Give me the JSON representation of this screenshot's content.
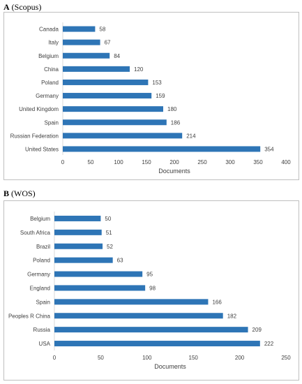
{
  "panels": [
    {
      "letter": "A",
      "source": "(Scopus)"
    },
    {
      "letter": "B",
      "source": "(WOS)"
    }
  ],
  "chart_data": [
    {
      "type": "bar",
      "orientation": "horizontal",
      "categories": [
        "Canada",
        "Italy",
        "Belgium",
        "China",
        "Poland",
        "Germany",
        "United Kingdom",
        "Spain",
        "Russian Federation",
        "United States"
      ],
      "values": [
        58,
        67,
        84,
        120,
        153,
        159,
        180,
        186,
        214,
        354
      ],
      "xlabel": "Documents",
      "ylabel": "",
      "xlim": [
        0,
        400
      ],
      "xticks": [
        "0",
        "50",
        "100",
        "150",
        "200",
        "250",
        "300",
        "350",
        "400"
      ],
      "value_labels": [
        "58",
        "67",
        "84",
        "120",
        "153",
        "159",
        "180",
        "186",
        "214",
        "354"
      ],
      "color": "#2e75b6",
      "grid": false,
      "legend": false
    },
    {
      "type": "bar",
      "orientation": "horizontal",
      "categories": [
        "Belgium",
        "South Africa",
        "Brazil",
        "Poland",
        "Germany",
        "England",
        "Spain",
        "Peoples R China",
        "Russia",
        "USA"
      ],
      "values": [
        50,
        51,
        52,
        63,
        95,
        98,
        166,
        182,
        209,
        222
      ],
      "xlabel": "Documents",
      "ylabel": "",
      "xlim": [
        0,
        250
      ],
      "xticks": [
        "0",
        "50",
        "100",
        "150",
        "200",
        "250"
      ],
      "value_labels": [
        "50",
        "51",
        "52",
        "63",
        "95",
        "98",
        "166",
        "182",
        "209",
        "222"
      ],
      "color": "#2e75b6",
      "grid": false,
      "legend": false
    }
  ]
}
